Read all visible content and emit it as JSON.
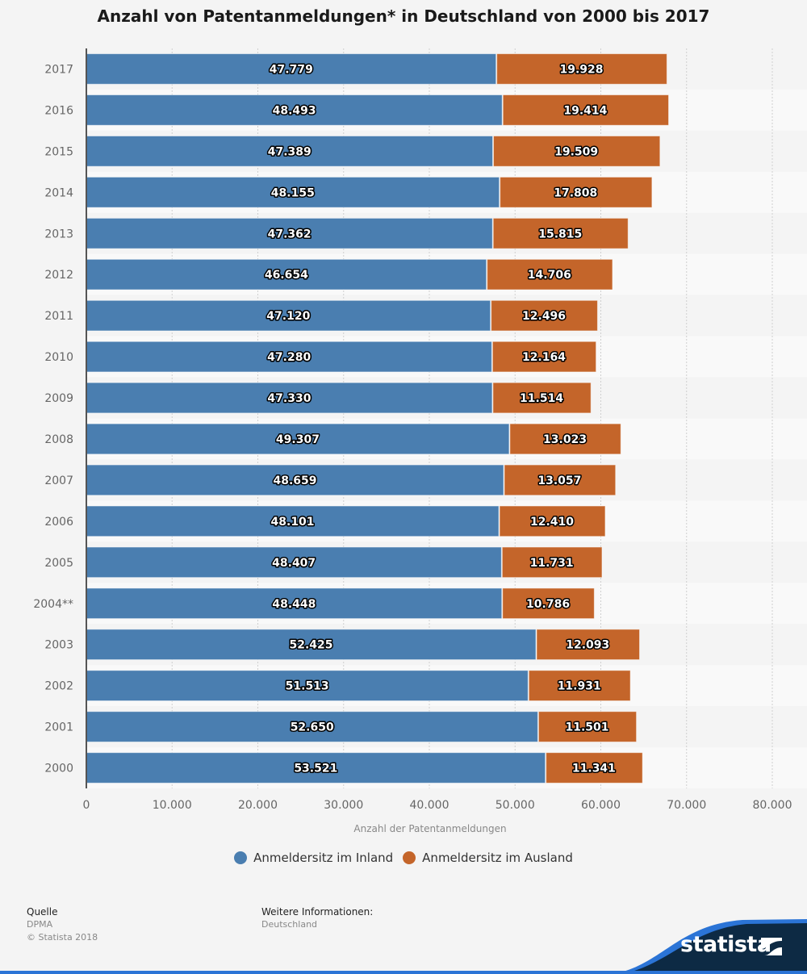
{
  "chart_data": {
    "type": "bar",
    "orientation": "horizontal",
    "stacked": true,
    "title": "Anzahl von Patentanmeldungen* in Deutschland von 2000 bis 2017",
    "xlabel": "Anzahl der Patentanmeldungen",
    "ylabel": "",
    "xlim": [
      0,
      80000
    ],
    "xticks": [
      0,
      10000,
      20000,
      30000,
      40000,
      50000,
      60000,
      70000,
      80000
    ],
    "xtick_labels": [
      "0",
      "10.000",
      "20.000",
      "30.000",
      "40.000",
      "50.000",
      "60.000",
      "70.000",
      "80.000"
    ],
    "grid": true,
    "legend_position": "bottom",
    "categories": [
      "2017",
      "2016",
      "2015",
      "2014",
      "2013",
      "2012",
      "2011",
      "2010",
      "2009",
      "2008",
      "2007",
      "2006",
      "2005",
      "2004**",
      "2003",
      "2002",
      "2001",
      "2000"
    ],
    "series": [
      {
        "name": "Anmeldersitz im Inland",
        "color": "#4a7eb0",
        "values": [
          47779,
          48493,
          47389,
          48155,
          47362,
          46654,
          47120,
          47280,
          47330,
          49307,
          48659,
          48101,
          48407,
          48448,
          52425,
          51513,
          52650,
          53521
        ],
        "labels": [
          "47.779",
          "48.493",
          "47.389",
          "48.155",
          "47.362",
          "46.654",
          "47.120",
          "47.280",
          "47.330",
          "49.307",
          "48.659",
          "48.101",
          "48.407",
          "48.448",
          "52.425",
          "51.513",
          "52.650",
          "53.521"
        ]
      },
      {
        "name": "Anmeldersitz im Ausland",
        "color": "#c4652a",
        "values": [
          19928,
          19414,
          19509,
          17808,
          15815,
          14706,
          12496,
          12164,
          11514,
          13023,
          13057,
          12410,
          11731,
          10786,
          12093,
          11931,
          11501,
          11341
        ],
        "labels": [
          "19.928",
          "19.414",
          "19.509",
          "17.808",
          "15.815",
          "14.706",
          "12.496",
          "12.164",
          "11.514",
          "13.023",
          "13.057",
          "12.410",
          "11.731",
          "10.786",
          "12.093",
          "11.931",
          "11.501",
          "11.341"
        ]
      }
    ]
  },
  "legend": {
    "items": [
      {
        "label": "Anmeldersitz im Inland",
        "color": "#4a7eb0"
      },
      {
        "label": "Anmeldersitz im Ausland",
        "color": "#c4652a"
      }
    ]
  },
  "footer": {
    "source_heading": "Quelle",
    "source": "DPMA",
    "copyright": "© Statista 2018",
    "info_heading": "Weitere Informationen:",
    "info": "Deutschland"
  },
  "brand": {
    "name": "statista",
    "colors": {
      "dark": "#0d2a44",
      "accent": "#2b74d6"
    }
  }
}
